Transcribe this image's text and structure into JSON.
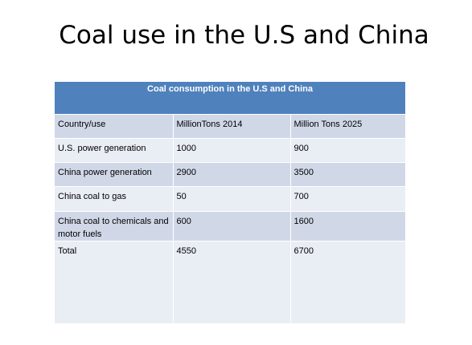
{
  "slide": {
    "title": "Coal use in the U.S and China"
  },
  "table": {
    "caption": "Coal consumption  in the U.S and China",
    "header_color": "#4f81bd",
    "band_colors": [
      "#d0d8e8",
      "#e9edf4"
    ],
    "rows": [
      [
        "Country/use",
        "MillionTons  2014",
        "Million Tons 2025"
      ],
      [
        "U.S. power generation",
        "1000",
        "900"
      ],
      [
        "China power generation",
        "2900",
        "3500"
      ],
      [
        "China coal to gas",
        "50",
        "700"
      ],
      [
        "China coal to chemicals and motor fuels",
        "600",
        "1600"
      ],
      [
        "Total",
        "4550",
        "6700"
      ]
    ]
  }
}
